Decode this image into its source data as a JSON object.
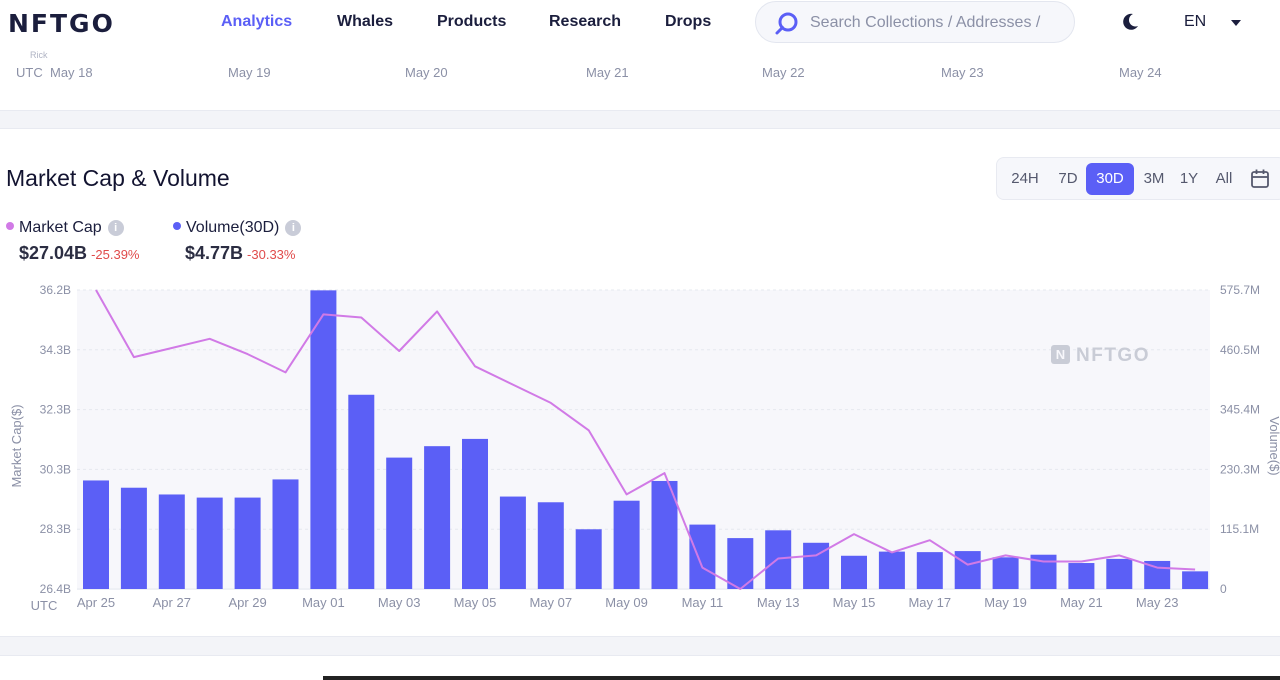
{
  "header": {
    "logo": "NFTGO",
    "nav": [
      "Analytics",
      "Whales",
      "Products",
      "Research",
      "Drops"
    ],
    "active_nav": "Analytics",
    "search_placeholder": "Search Collections / Addresses /",
    "language": "EN",
    "icons": [
      "search-icon",
      "moon-icon",
      "chevron-down-icon"
    ]
  },
  "prev_chart": {
    "stub": "Rick",
    "tz": "UTC",
    "ticks": [
      "May 18",
      "May 19",
      "May 20",
      "May 21",
      "May 22",
      "May 23",
      "May 24"
    ]
  },
  "section": {
    "title": "Market Cap & Volume",
    "ranges": [
      "24H",
      "7D",
      "30D",
      "3M",
      "1Y",
      "All"
    ],
    "active_range": "30D"
  },
  "legend": {
    "market_cap": {
      "label": "Market Cap",
      "value": "$27.04B",
      "change": "-25.39%",
      "color": "#d17ae6"
    },
    "volume": {
      "label": "Volume(30D)",
      "value": "$4.77B",
      "change": "-30.33%",
      "color": "#5b5ff6"
    }
  },
  "chart_data": {
    "type": "bar+line",
    "watermark": "NFTGO",
    "tz": "UTC",
    "y_left_label": "Market Cap($)",
    "y_right_label": "Volume($)",
    "y_left_ticks": [
      "36.2B",
      "34.3B",
      "32.3B",
      "30.3B",
      "28.3B",
      "26.4B"
    ],
    "y_left_range": [
      26.4,
      36.2
    ],
    "y_right_ticks": [
      "575.7M",
      "460.5M",
      "345.4M",
      "230.3M",
      "115.1M",
      "0"
    ],
    "y_right_range": [
      0,
      575.7
    ],
    "x_ticks": [
      "Apr 25",
      "Apr 27",
      "Apr 29",
      "May 01",
      "May 03",
      "May 05",
      "May 07",
      "May 09",
      "May 11",
      "May 13",
      "May 15",
      "May 17",
      "May 19",
      "May 21",
      "May 23"
    ],
    "categories": [
      "Apr 25",
      "Apr 26",
      "Apr 27",
      "Apr 28",
      "Apr 29",
      "Apr 30",
      "May 01",
      "May 02",
      "May 03",
      "May 04",
      "May 05",
      "May 06",
      "May 07",
      "May 08",
      "May 09",
      "May 10",
      "May 11",
      "May 12",
      "May 13",
      "May 14",
      "May 15",
      "May 16",
      "May 17",
      "May 18",
      "May 19",
      "May 20",
      "May 21",
      "May 22",
      "May 23",
      "May 24"
    ],
    "series": [
      {
        "name": "Volume(30D)",
        "unit": "M",
        "axis": "right",
        "values": [
          209,
          195,
          182,
          176,
          176,
          211,
          575,
          374,
          253,
          275,
          289,
          178,
          167,
          115,
          170,
          208,
          124,
          98,
          113,
          89,
          64,
          72,
          71,
          73,
          61,
          66,
          50,
          58,
          54,
          34
        ]
      },
      {
        "name": "Market Cap",
        "unit": "B",
        "axis": "left",
        "values": [
          36.2,
          34.0,
          34.3,
          34.6,
          34.1,
          33.5,
          35.4,
          35.3,
          34.2,
          35.5,
          33.7,
          33.1,
          32.5,
          31.6,
          29.5,
          30.2,
          27.1,
          26.4,
          27.4,
          27.5,
          28.2,
          27.6,
          28.0,
          27.2,
          27.5,
          27.3,
          27.3,
          27.5,
          27.1,
          27.04
        ]
      }
    ]
  }
}
